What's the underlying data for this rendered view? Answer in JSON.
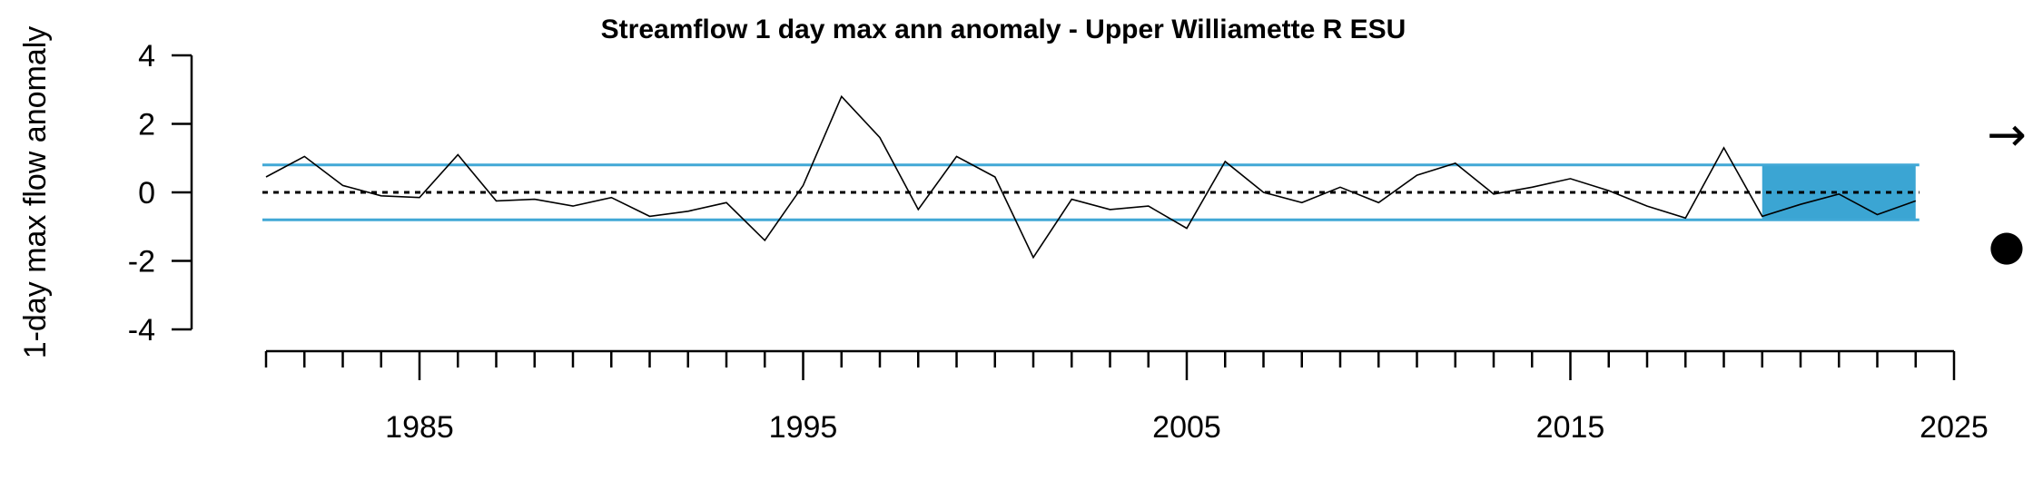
{
  "chart_data": {
    "type": "line",
    "title": "Streamflow 1 day max ann anomaly - Upper Williamette R ESU",
    "xlabel": "",
    "ylabel": "1-day max flow anomaly",
    "xlim": [
      1981,
      2025
    ],
    "ylim": [
      -4,
      4
    ],
    "x_ticks": [
      1985,
      1995,
      2005,
      2015,
      2025
    ],
    "x_tick_labels": [
      "1985",
      "1995",
      "2005",
      "2015",
      "2025"
    ],
    "y_ticks": [
      -4,
      -2,
      0,
      2,
      4
    ],
    "y_tick_labels": [
      "-4",
      "-2",
      "0",
      "2",
      "4"
    ],
    "mean_line": 0,
    "sd_band": [
      -0.8,
      0.8
    ],
    "highlight_period": [
      2020,
      2024
    ],
    "trend_symbol": "→",
    "status_symbol": "●",
    "series": [
      {
        "x": [
          1981,
          1982,
          1983,
          1984,
          1985,
          1986,
          1987,
          1988,
          1989,
          1990,
          1991,
          1992,
          1993,
          1994,
          1995,
          1996,
          1997,
          1998,
          1999,
          2000,
          2001,
          2002,
          2003,
          2004,
          2005,
          2006,
          2007,
          2008,
          2009,
          2010,
          2011,
          2012,
          2013,
          2014,
          2015,
          2016,
          2017,
          2018,
          2019,
          2020,
          2021,
          2022,
          2023,
          2024
        ],
        "values": [
          0.45,
          1.05,
          0.2,
          -0.1,
          -0.15,
          1.1,
          -0.25,
          -0.2,
          -0.4,
          -0.15,
          -0.7,
          -0.55,
          -0.3,
          -1.4,
          0.2,
          2.8,
          1.6,
          -0.5,
          1.05,
          0.45,
          -1.9,
          -0.2,
          -0.5,
          -0.4,
          -1.05,
          0.9,
          0.0,
          -0.3,
          0.15,
          -0.3,
          0.5,
          0.85,
          -0.05,
          0.15,
          0.4,
          0.05,
          -0.4,
          -0.75,
          1.3,
          -0.7,
          -0.35,
          -0.05,
          -0.65,
          -0.25
        ]
      }
    ],
    "colors": {
      "band": "#41a8d6",
      "highlight": "#3ba5d3",
      "line": "#000000",
      "mean": "#000000"
    }
  }
}
